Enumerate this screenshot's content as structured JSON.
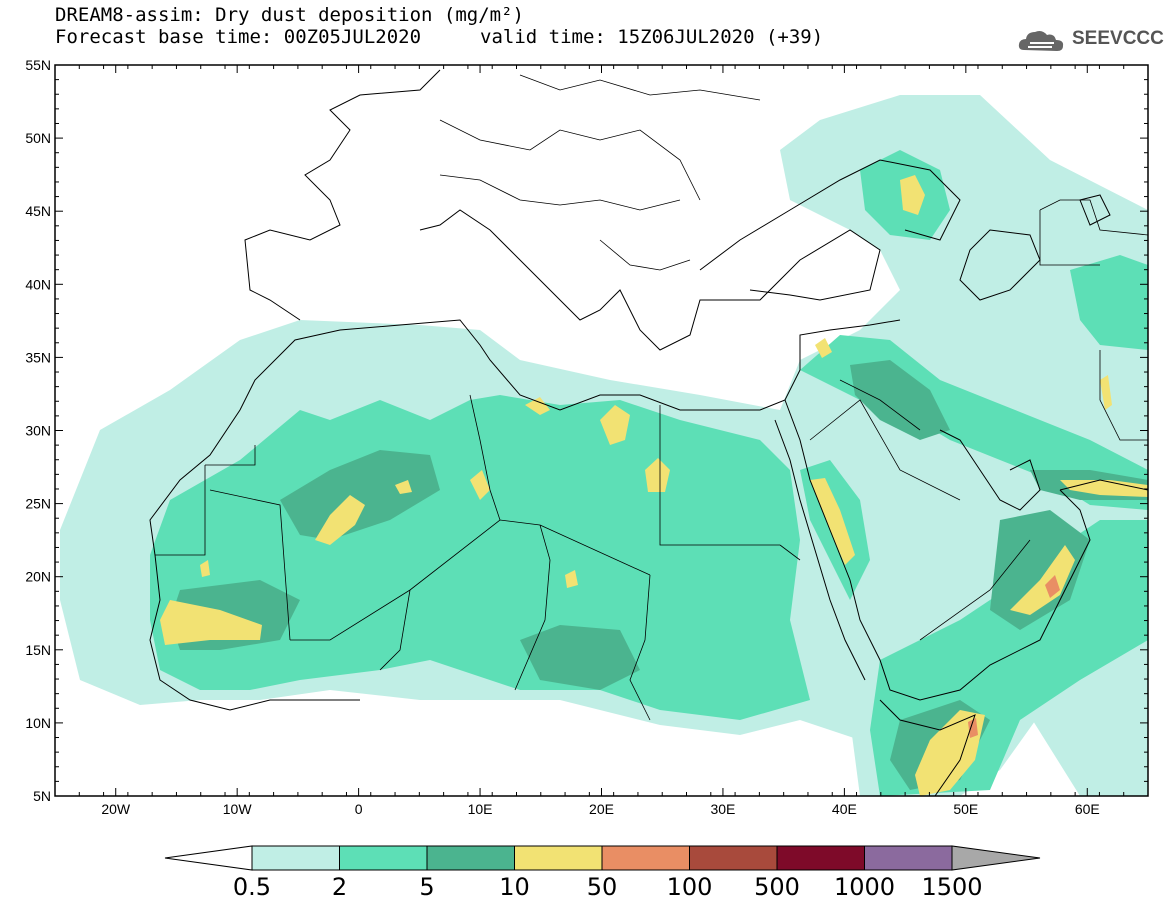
{
  "header": {
    "title_line1": "DREAM8-assim: Dry dust deposition (mg/m²)",
    "title_line2_left": "Forecast base time: 00Z05JUL2020",
    "title_line2_right": "valid time: 15Z06JUL2020 (+39)",
    "logo_text": "SEEVCCC",
    "logo_icon": "cloud-icon"
  },
  "map": {
    "lon_range": [
      -25,
      65
    ],
    "lat_range": [
      5,
      55
    ],
    "lat_ticks": [
      "55N",
      "50N",
      "45N",
      "40N",
      "35N",
      "30N",
      "25N",
      "20N",
      "15N",
      "10N",
      "5N"
    ],
    "lat_values": [
      55,
      50,
      45,
      40,
      35,
      30,
      25,
      20,
      15,
      10,
      5
    ],
    "lon_ticks": [
      "20W",
      "10W",
      "0",
      "10E",
      "20E",
      "30E",
      "40E",
      "50E",
      "60E"
    ],
    "lon_values": [
      -20,
      -10,
      0,
      10,
      20,
      30,
      40,
      50,
      60
    ]
  },
  "colorbar": {
    "labels": [
      "0.5",
      "2",
      "5",
      "10",
      "50",
      "100",
      "500",
      "1000",
      "1500"
    ],
    "colors": [
      "#c0eee5",
      "#5ddfb6",
      "#4bb48f",
      "#f2e273",
      "#e98e64",
      "#a84a3c",
      "#7e0a29",
      "#8b6a9e",
      "#a8a8a8"
    ],
    "under_color": "#ffffff"
  }
}
